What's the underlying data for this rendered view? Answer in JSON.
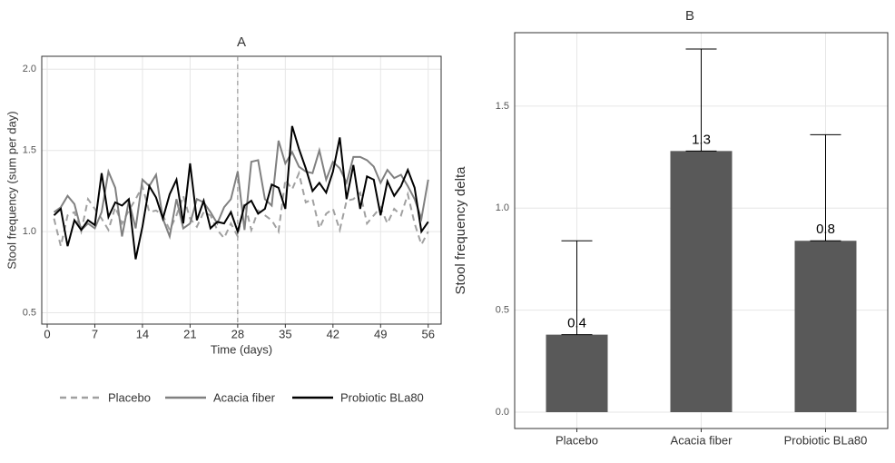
{
  "chart_data": [
    {
      "type": "line",
      "title": "A",
      "x_label": "Time (days)",
      "y_label": "Stool frequency (sum per day)",
      "x": [
        1,
        2,
        3,
        4,
        5,
        6,
        7,
        8,
        9,
        10,
        11,
        12,
        13,
        14,
        15,
        16,
        17,
        18,
        19,
        20,
        21,
        22,
        23,
        24,
        25,
        26,
        27,
        28,
        29,
        30,
        31,
        32,
        33,
        34,
        35,
        36,
        37,
        38,
        39,
        40,
        41,
        42,
        43,
        44,
        45,
        46,
        47,
        48,
        49,
        50,
        51,
        52,
        53,
        54,
        55,
        56
      ],
      "series": [
        {
          "name": "Placebo",
          "color": "#a0a0a0",
          "dashed": true,
          "values": [
            1.08,
            0.91,
            1.1,
            1.12,
            1.0,
            1.2,
            1.14,
            1.08,
            1.01,
            1.15,
            1.05,
            1.13,
            1.2,
            1.28,
            1.12,
            1.13,
            1.1,
            1.01,
            1.1,
            1.22,
            1.08,
            1.03,
            1.12,
            1.1,
            1.01,
            0.96,
            1.05,
            0.97,
            1.18,
            1.01,
            1.13,
            1.1,
            1.07,
            1.0,
            1.32,
            1.26,
            1.36,
            1.18,
            1.2,
            1.02,
            1.11,
            1.14,
            1.01,
            1.19,
            1.2,
            1.24,
            1.05,
            1.1,
            1.15,
            1.05,
            1.14,
            1.1,
            1.23,
            1.05,
            0.92,
            1.0
          ]
        },
        {
          "name": "Acacia fiber",
          "color": "#808080",
          "dashed": false,
          "values": [
            1.12,
            1.15,
            1.22,
            1.17,
            1.01,
            1.05,
            1.02,
            1.12,
            1.37,
            1.27,
            0.97,
            1.19,
            1.02,
            1.32,
            1.28,
            1.35,
            1.08,
            0.97,
            1.2,
            1.02,
            1.05,
            1.2,
            1.18,
            1.12,
            1.05,
            1.15,
            1.2,
            1.37,
            1.01,
            1.43,
            1.44,
            1.2,
            1.16,
            1.56,
            1.42,
            1.49,
            1.4,
            1.37,
            1.36,
            1.5,
            1.32,
            1.43,
            1.39,
            1.3,
            1.46,
            1.46,
            1.44,
            1.4,
            1.3,
            1.38,
            1.33,
            1.35,
            1.28,
            1.2,
            1.08,
            1.32
          ]
        },
        {
          "name": "Probiotic BLa80",
          "color": "#000000",
          "dashed": false,
          "values": [
            1.1,
            1.14,
            0.91,
            1.07,
            1.01,
            1.07,
            1.04,
            1.36,
            1.09,
            1.18,
            1.16,
            1.2,
            0.83,
            1.03,
            1.28,
            1.21,
            1.08,
            1.23,
            1.32,
            1.05,
            1.42,
            1.07,
            1.19,
            1.02,
            1.06,
            1.05,
            1.12,
            1.0,
            1.16,
            1.19,
            1.11,
            1.14,
            1.29,
            1.27,
            1.14,
            1.65,
            1.51,
            1.39,
            1.25,
            1.3,
            1.24,
            1.37,
            1.58,
            1.2,
            1.41,
            1.14,
            1.34,
            1.32,
            1.1,
            1.31,
            1.22,
            1.28,
            1.38,
            1.27,
            1.0,
            1.06
          ]
        }
      ],
      "vline": 28,
      "xlim": [
        -0.8,
        57.9
      ],
      "xticks": [
        0,
        7,
        14,
        21,
        28,
        35,
        42,
        49,
        56
      ],
      "ylim": [
        0.43,
        2.08
      ],
      "yticks": [
        0.5,
        {
          "value": 1,
          "label": "1.0"
        },
        1.5,
        {
          "value": 2,
          "label": "2.0"
        }
      ],
      "grid": true,
      "legend": "bottom"
    },
    {
      "type": "bar",
      "title": "B",
      "y_label": "Stool frequency delta",
      "categories": [
        "Placebo",
        "Acacia fiber",
        "Probiotic BLa80"
      ],
      "values": [
        0.38,
        1.28,
        0.84
      ],
      "value_labels": [
        "0.4",
        "1.3",
        "0.8"
      ],
      "errors": [
        0.46,
        0.5,
        0.52
      ],
      "color": "#595959",
      "ylim": [
        -0.08,
        1.86
      ],
      "yticks": [
        {
          "value": 0,
          "label": "0.0"
        },
        0.5,
        {
          "value": 1,
          "label": "1.0"
        },
        1.5
      ],
      "grid": true
    }
  ]
}
